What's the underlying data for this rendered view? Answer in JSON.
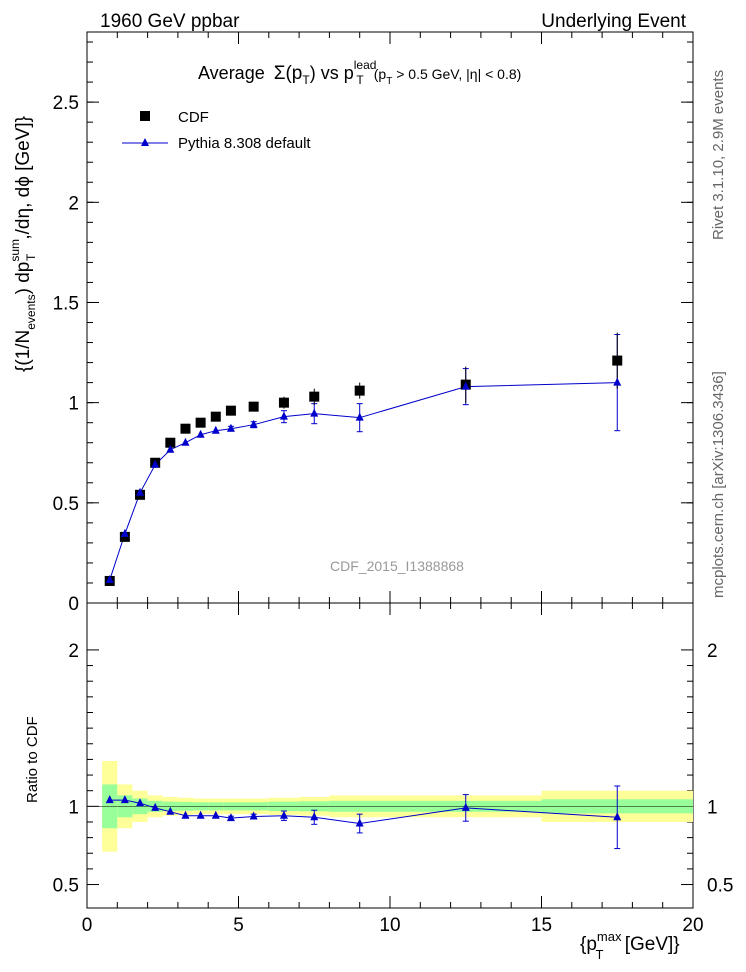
{
  "header": {
    "left": "1960 GeV ppbar",
    "right": "Underlying Event"
  },
  "side": {
    "rivet": "Rivet 3.1.10,  2.9M events",
    "mcplots": "mcplots.cern.ch [arXiv:1306.3436]"
  },
  "chart_data": [
    {
      "type": "scatter",
      "title": "Average Σ(p_T) vs p_T^lead (p_T > 0.5 GeV, |η| < 0.8)",
      "title_parts": {
        "prefix": "Average",
        "sigma": "Σ(p",
        "sub_T": "T",
        "vs": ") vs p",
        "sup_lead": "lead",
        "sub_T2": "T",
        "cut_open": "(p",
        "sub_T3": "T",
        "cut_rest": " > 0.5 GeV, |η| < 0.8)"
      },
      "ylabel": "{(1/N_events) dp_T^sum,/dη, dϕ [GeV]}",
      "ylabel_parts": {
        "a": "{(1/N",
        "b": "events",
        "c": ") dp",
        "d": "sum",
        "e": "T",
        "f": ",/dη, dϕ [GeV]}"
      },
      "watermark": "CDF_2015_I1388868",
      "xlim": [
        0,
        20
      ],
      "ylim": [
        0,
        2.85
      ],
      "yticks": [
        "0",
        "0.5",
        "1",
        "1.5",
        "2",
        "2.5"
      ],
      "ytick_values": [
        0,
        0.5,
        1,
        1.5,
        2,
        2.5
      ],
      "legend": {
        "position": "top-left",
        "cdf_label": "CDF",
        "pythia_label": "Pythia 8.308 default"
      },
      "series": [
        {
          "name": "CDF",
          "x": [
            0.75,
            1.25,
            1.75,
            2.25,
            2.75,
            3.25,
            3.75,
            4.25,
            4.75,
            5.5,
            6.5,
            7.5,
            9.0,
            12.5,
            17.5
          ],
          "y": [
            0.11,
            0.33,
            0.54,
            0.7,
            0.8,
            0.87,
            0.9,
            0.93,
            0.96,
            0.98,
            1.0,
            1.03,
            1.06,
            1.09,
            1.21
          ],
          "yerr": [
            0.005,
            0.01,
            0.01,
            0.01,
            0.01,
            0.01,
            0.01,
            0.01,
            0.01,
            0.02,
            0.03,
            0.04,
            0.04,
            0.09,
            0.14
          ]
        },
        {
          "name": "Pythia 8.308 default",
          "x": [
            0.75,
            1.25,
            1.75,
            2.25,
            2.75,
            3.25,
            3.75,
            4.25,
            4.75,
            5.5,
            6.5,
            7.5,
            9.0,
            12.5,
            17.5
          ],
          "y": [
            0.115,
            0.345,
            0.55,
            0.69,
            0.765,
            0.8,
            0.84,
            0.86,
            0.87,
            0.89,
            0.93,
            0.945,
            0.925,
            1.08,
            1.1
          ],
          "yerr": [
            0.003,
            0.005,
            0.005,
            0.005,
            0.006,
            0.007,
            0.008,
            0.01,
            0.012,
            0.015,
            0.03,
            0.05,
            0.07,
            0.09,
            0.24
          ]
        }
      ]
    },
    {
      "type": "scatter",
      "ylabel": "Ratio to CDF",
      "xlabel": "{p_T^max [GeV]}",
      "xlabel_parts": {
        "a": "{p",
        "sup": "max",
        "sub": "T",
        "b": " [GeV]}"
      },
      "xlim": [
        0,
        20
      ],
      "ylim": [
        0.35,
        2.3
      ],
      "xticks": [
        "0",
        "5",
        "10",
        "15",
        "20"
      ],
      "xtick_values": [
        0,
        5,
        10,
        15,
        20
      ],
      "yticks": [
        "0.5",
        "1",
        "2"
      ],
      "ytick_values": [
        0.5,
        1,
        2
      ],
      "band_edges": [
        0.5,
        1.0,
        1.5,
        2.0,
        2.5,
        3.0,
        3.5,
        4.0,
        4.5,
        5.0,
        6.0,
        7.0,
        8.0,
        10.0,
        15.0,
        20.0
      ],
      "band_outer": [
        0.29,
        0.14,
        0.1,
        0.07,
        0.06,
        0.055,
        0.05,
        0.05,
        0.05,
        0.05,
        0.055,
        0.06,
        0.07,
        0.07,
        0.1
      ],
      "band_inner": [
        0.14,
        0.07,
        0.05,
        0.035,
        0.03,
        0.028,
        0.026,
        0.026,
        0.026,
        0.026,
        0.03,
        0.032,
        0.035,
        0.035,
        0.045
      ],
      "series": [
        {
          "name": "Pythia 8.308 default",
          "x": [
            0.75,
            1.25,
            1.75,
            2.25,
            2.75,
            3.25,
            3.75,
            4.25,
            4.75,
            5.5,
            6.5,
            7.5,
            9.0,
            12.5,
            17.5
          ],
          "y": [
            1.04,
            1.04,
            1.02,
            0.99,
            0.965,
            0.94,
            0.94,
            0.94,
            0.925,
            0.935,
            0.94,
            0.93,
            0.89,
            0.99,
            0.93
          ],
          "yerr": [
            0.005,
            0.006,
            0.006,
            0.006,
            0.006,
            0.007,
            0.008,
            0.01,
            0.012,
            0.015,
            0.03,
            0.045,
            0.06,
            0.085,
            0.2
          ]
        }
      ]
    }
  ],
  "colors": {
    "pythia": "#0000cc",
    "cdf": "#000000",
    "band_outer": "#ffff99",
    "band_inner": "#99ff99",
    "watermark": "#999999",
    "side_text": "#666666"
  }
}
